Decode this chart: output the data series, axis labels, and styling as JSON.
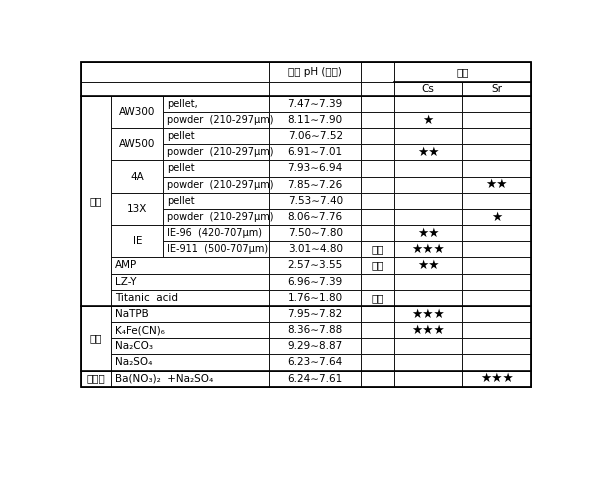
{
  "rows": [
    {
      "cat1": "흡저",
      "cat2": "AW300",
      "cat3": "pellet,",
      "ph": "7.47∼7.39",
      "note": "",
      "cs": "",
      "sr": ""
    },
    {
      "cat1": "",
      "cat2": "",
      "cat3": "powder  (210-297μm)",
      "ph": "8.11∼7.90",
      "note": "",
      "cs": "★",
      "sr": ""
    },
    {
      "cat1": "",
      "cat2": "AW500",
      "cat3": "pellet",
      "ph": "7.06∼7.52",
      "note": "",
      "cs": "",
      "sr": ""
    },
    {
      "cat1": "",
      "cat2": "",
      "cat3": "powder  (210-297μm)",
      "ph": "6.91∼7.01",
      "note": "",
      "cs": "★★",
      "sr": ""
    },
    {
      "cat1": "",
      "cat2": "4A",
      "cat3": "pellet",
      "ph": "7.93∼6.94",
      "note": "",
      "cs": "",
      "sr": ""
    },
    {
      "cat1": "",
      "cat2": "",
      "cat3": "powder  (210-297μm)",
      "ph": "7.85∼7.26",
      "note": "",
      "cs": "",
      "sr": "★★"
    },
    {
      "cat1": "",
      "cat2": "13X",
      "cat3": "pellet",
      "ph": "7.53∼7.40",
      "note": "",
      "cs": "",
      "sr": ""
    },
    {
      "cat1": "",
      "cat2": "",
      "cat3": "powder  (210-297μm)",
      "ph": "8.06∼7.76",
      "note": "",
      "cs": "",
      "sr": "★"
    },
    {
      "cat1": "",
      "cat2": "IE",
      "cat3": "IE-96  (420-707μm)",
      "ph": "7.50∼7.80",
      "note": "",
      "cs": "★★",
      "sr": ""
    },
    {
      "cat1": "",
      "cat2": "",
      "cat3": "IE-911  (500-707μm)",
      "ph": "3.01∼4.80",
      "note": "산성",
      "cs": "★★★",
      "sr": ""
    },
    {
      "cat1": "",
      "cat2": "AMP",
      "cat3": "",
      "ph": "2.57∼3.55",
      "note": "산성",
      "cs": "★★",
      "sr": ""
    },
    {
      "cat1": "",
      "cat2": "LZ-Y",
      "cat3": "",
      "ph": "6.96∼7.39",
      "note": "",
      "cs": "",
      "sr": ""
    },
    {
      "cat1": "",
      "cat2": "Titanic  acid",
      "cat3": "",
      "ph": "1.76∼1.80",
      "note": "산성",
      "cs": "",
      "sr": ""
    },
    {
      "cat1": "침전",
      "cat2": "NaTPB",
      "cat3": "",
      "ph": "7.95∼7.82",
      "note": "",
      "cs": "★★★",
      "sr": ""
    },
    {
      "cat1": "",
      "cat2": "K₄Fe(CN)₆",
      "cat3": "",
      "ph": "8.36∼7.88",
      "note": "",
      "cs": "★★★",
      "sr": ""
    },
    {
      "cat1": "",
      "cat2": "Na₂CO₃",
      "cat3": "",
      "ph": "9.29∼8.87",
      "note": "",
      "cs": "",
      "sr": ""
    },
    {
      "cat1": "",
      "cat2": "Na₂SO₄",
      "cat3": "",
      "ph": "6.23∼7.64",
      "note": "",
      "cs": "",
      "sr": ""
    },
    {
      "cat1": "공침전",
      "cat2": "Ba(NO₃)₂  +Na₂SO₄",
      "cat3": "",
      "ph": "6.24∼7.61",
      "note": "",
      "cs": "",
      "sr": "★★★"
    }
  ],
  "cat1_spans": [
    {
      "label": "흡저",
      "start": 0,
      "end": 12
    },
    {
      "label": "침전",
      "start": 13,
      "end": 16
    },
    {
      "label": "공침전",
      "start": 17,
      "end": 17
    }
  ],
  "cat2_spans": [
    {
      "label": "AW300",
      "start": 0,
      "end": 1
    },
    {
      "label": "AW500",
      "start": 2,
      "end": 3
    },
    {
      "label": "4A",
      "start": 4,
      "end": 5
    },
    {
      "label": "13X",
      "start": 6,
      "end": 7
    },
    {
      "label": "IE",
      "start": 8,
      "end": 9
    },
    {
      "label": "AMP",
      "start": 10,
      "end": 10
    },
    {
      "label": "LZ-Y",
      "start": 11,
      "end": 11
    },
    {
      "label": "Titanic  acid",
      "start": 12,
      "end": 12
    },
    {
      "label": "NaTPB",
      "start": 13,
      "end": 13
    },
    {
      "label": "K₄Fe(CN)₆",
      "start": 14,
      "end": 14
    },
    {
      "label": "Na₂CO₃",
      "start": 15,
      "end": 15
    },
    {
      "label": "Na₂SO₄",
      "start": 16,
      "end": 16
    },
    {
      "label": "Ba(NO₃)₂  +Na₂SO₄",
      "start": 17,
      "end": 17
    }
  ],
  "section_separators": [
    12,
    16
  ],
  "bg": "#ffffff",
  "lc": "#000000",
  "header_ph": "용액 pH (평형)",
  "header_bigo": "비고",
  "header_cs": "Cs",
  "header_sr": "Sr"
}
